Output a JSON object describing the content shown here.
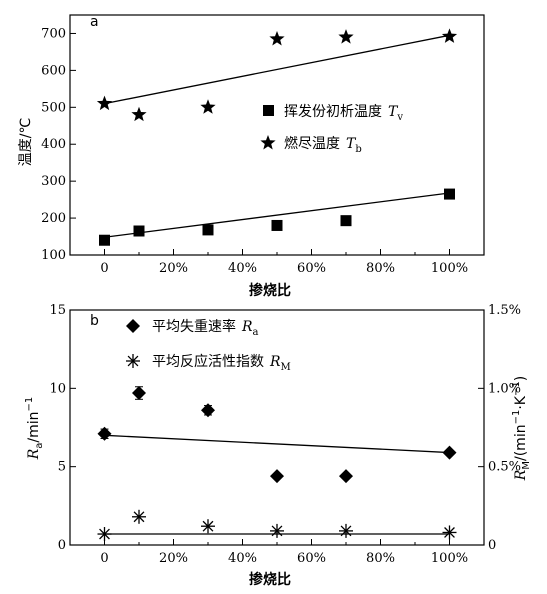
{
  "chart_data": [
    {
      "type": "scatter",
      "panel_label": "a",
      "xlabel": "掺烧比",
      "ylabel": "温度/℃",
      "x_ticks": [
        "0",
        "20%",
        "40%",
        "60%",
        "80%",
        "100%"
      ],
      "x_values": [
        0,
        20,
        40,
        60,
        80,
        100
      ],
      "xlim": [
        -10,
        110
      ],
      "ylim": [
        100,
        750
      ],
      "y_ticks": [
        100,
        200,
        300,
        400,
        500,
        600,
        700
      ],
      "series": [
        {
          "name": "挥发份初析温度",
          "symbol": "Tv",
          "sym_main": "T",
          "sym_sub": "v",
          "marker": "square",
          "x": [
            0,
            10,
            30,
            50,
            70,
            100
          ],
          "y": [
            140,
            165,
            168,
            180,
            193,
            265
          ],
          "fit": [
            148,
            268
          ]
        },
        {
          "name": "燃尽温度",
          "symbol": "Tb",
          "sym_main": "T",
          "sym_sub": "b",
          "marker": "star",
          "x": [
            0,
            10,
            30,
            50,
            70,
            100
          ],
          "y": [
            510,
            480,
            500,
            685,
            690,
            692
          ],
          "fit": [
            510,
            695
          ]
        }
      ]
    },
    {
      "type": "scatter",
      "panel_label": "b",
      "xlabel": "掺烧比",
      "ylabel_left": {
        "main": "R",
        "sub": "a",
        "rest": "/min",
        "sup": "−1"
      },
      "ylabel_right": {
        "main": "R",
        "sub": "M",
        "rest": "/(min",
        "sup1": "−1",
        "mid": "·K",
        "sup2": "−1",
        "end": ")"
      },
      "x_ticks": [
        "0",
        "20%",
        "40%",
        "60%",
        "80%",
        "100%"
      ],
      "x_values": [
        0,
        20,
        40,
        60,
        80,
        100
      ],
      "xlim": [
        -10,
        110
      ],
      "ylim_left": [
        0,
        15
      ],
      "y_ticks_left": [
        0,
        5,
        10,
        15
      ],
      "ylim_right": [
        0,
        1.5
      ],
      "y_ticks_right": [
        "0",
        "0.5%",
        "1.0%",
        "1.5%"
      ],
      "y_ticks_right_values": [
        0,
        0.5,
        1.0,
        1.5
      ],
      "series": [
        {
          "name": "平均失重速率",
          "symbol": "Ra",
          "sym_main": "R",
          "sym_sub": "a",
          "marker": "diamond",
          "axis": "left",
          "x": [
            0,
            10,
            30,
            50,
            70,
            100
          ],
          "y": [
            7.1,
            9.7,
            8.6,
            4.4,
            4.4,
            5.9
          ],
          "err": [
            0.3,
            0.4,
            0.3,
            0,
            0,
            0
          ],
          "fit": [
            7.0,
            5.9
          ]
        },
        {
          "name": "平均反应活性指数",
          "symbol": "RM",
          "sym_main": "R",
          "sym_sub": "M",
          "marker": "asterisk",
          "axis": "right",
          "x": [
            0,
            10,
            30,
            50,
            70,
            100
          ],
          "y": [
            0.07,
            0.18,
            0.12,
            0.09,
            0.09,
            0.08
          ],
          "fit": [
            0.07,
            0.07
          ]
        }
      ]
    }
  ]
}
